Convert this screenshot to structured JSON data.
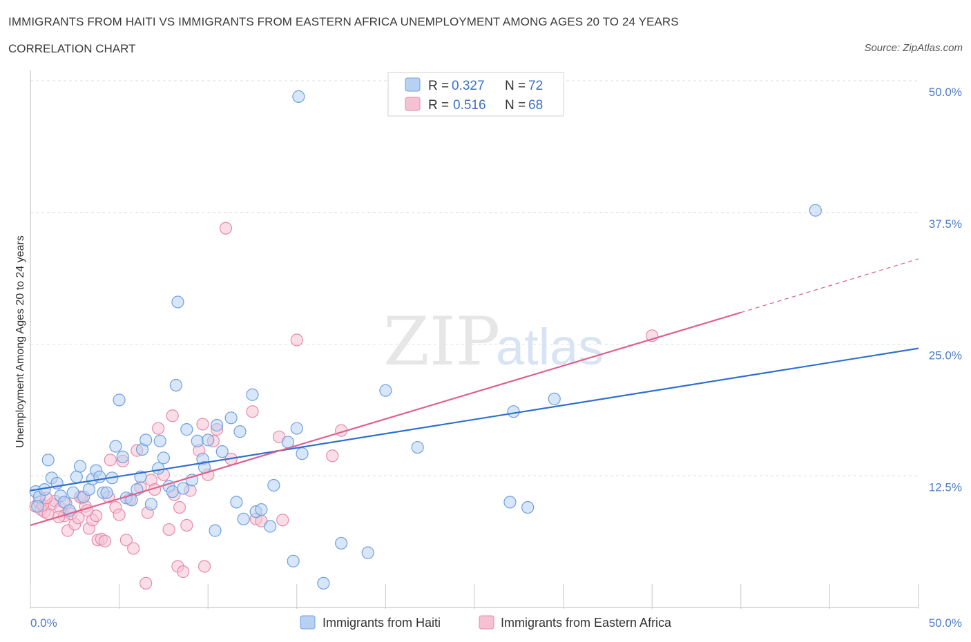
{
  "title": "IMMIGRANTS FROM HAITI VS IMMIGRANTS FROM EASTERN AFRICA UNEMPLOYMENT AMONG AGES 20 TO 24 YEARS",
  "subtitle": "CORRELATION CHART",
  "source": "Source: ZipAtlas.com",
  "watermark": {
    "zip": "ZIP",
    "atlas": "atlas"
  },
  "colors": {
    "haiti": "#6f9fe0",
    "haiti_fill": "#b7d1f3",
    "haiti_line": "#2e6fcf",
    "eafrica": "#e58aa8",
    "eafrica_fill": "#f6c2d3",
    "eafrica_line": "#e0608c",
    "grid": "#dcdcdc",
    "tick": "#4a7cc7"
  },
  "chart_data": {
    "type": "scatter",
    "xlabel": "",
    "ylabel": "Unemployment Among Ages 20 to 24 years",
    "xlim": [
      0,
      50
    ],
    "ylim": [
      0,
      50
    ],
    "x_tick_labels": [
      "0.0%",
      "50.0%"
    ],
    "y_ticks": [
      12.5,
      25.0,
      37.5,
      50.0
    ],
    "y_tick_labels": [
      "12.5%",
      "25.0%",
      "37.5%",
      "50.0%"
    ],
    "legend": {
      "rows": [
        {
          "r_label": "R = ",
          "r_value": "0.327",
          "n_label": "N = ",
          "n_value": "72"
        },
        {
          "r_label": "R = ",
          "r_value": "0.516",
          "n_label": "N = ",
          "n_value": "68"
        }
      ]
    },
    "series": [
      {
        "name": "Immigrants from Haiti",
        "trend": {
          "x0": 0,
          "y0": 11.1,
          "x1": 50,
          "y1": 24.6
        },
        "points": [
          [
            0.3,
            11.0
          ],
          [
            0.5,
            10.5
          ],
          [
            0.8,
            11.2
          ],
          [
            1.0,
            14.0
          ],
          [
            1.2,
            12.3
          ],
          [
            1.5,
            11.8
          ],
          [
            1.7,
            10.6
          ],
          [
            1.9,
            10.0
          ],
          [
            2.2,
            9.2
          ],
          [
            2.4,
            10.9
          ],
          [
            2.6,
            12.4
          ],
          [
            2.8,
            13.4
          ],
          [
            3.0,
            10.5
          ],
          [
            3.3,
            11.2
          ],
          [
            3.5,
            12.2
          ],
          [
            3.7,
            13.0
          ],
          [
            3.9,
            12.4
          ],
          [
            4.1,
            10.9
          ],
          [
            4.3,
            10.9
          ],
          [
            4.6,
            12.3
          ],
          [
            4.8,
            15.3
          ],
          [
            5.0,
            19.7
          ],
          [
            5.2,
            14.3
          ],
          [
            5.4,
            10.4
          ],
          [
            5.7,
            10.2
          ],
          [
            6.0,
            11.2
          ],
          [
            6.2,
            12.4
          ],
          [
            6.3,
            15.0
          ],
          [
            6.5,
            15.9
          ],
          [
            6.8,
            9.8
          ],
          [
            7.2,
            13.2
          ],
          [
            7.3,
            15.8
          ],
          [
            7.5,
            14.2
          ],
          [
            7.8,
            11.5
          ],
          [
            8.0,
            11.0
          ],
          [
            8.2,
            21.1
          ],
          [
            8.3,
            29.0
          ],
          [
            8.6,
            11.3
          ],
          [
            8.8,
            16.9
          ],
          [
            9.1,
            12.1
          ],
          [
            9.4,
            15.8
          ],
          [
            9.7,
            14.1
          ],
          [
            9.8,
            13.3
          ],
          [
            10.0,
            15.9
          ],
          [
            10.4,
            7.3
          ],
          [
            10.5,
            17.3
          ],
          [
            10.8,
            14.8
          ],
          [
            11.3,
            18.0
          ],
          [
            11.6,
            10.0
          ],
          [
            11.8,
            16.7
          ],
          [
            12.0,
            8.4
          ],
          [
            12.5,
            20.2
          ],
          [
            12.7,
            9.1
          ],
          [
            13.0,
            9.3
          ],
          [
            13.5,
            7.7
          ],
          [
            13.7,
            11.6
          ],
          [
            14.5,
            15.7
          ],
          [
            14.8,
            4.4
          ],
          [
            15.0,
            17.0
          ],
          [
            15.1,
            48.5
          ],
          [
            15.3,
            14.6
          ],
          [
            16.5,
            2.3
          ],
          [
            17.5,
            6.1
          ],
          [
            19.0,
            5.2
          ],
          [
            20.0,
            20.6
          ],
          [
            21.8,
            15.2
          ],
          [
            27.0,
            10.0
          ],
          [
            27.2,
            18.6
          ],
          [
            28.0,
            9.5
          ],
          [
            29.5,
            19.8
          ],
          [
            44.2,
            37.7
          ],
          [
            0.4,
            9.6
          ]
        ]
      },
      {
        "name": "Immigrants from Eastern Africa",
        "trend": {
          "x0": 0,
          "y0": 7.8,
          "x1": 40,
          "y1": 28.0,
          "dash_x1": 50,
          "dash_y1": 33.1
        },
        "points": [
          [
            0.3,
            9.6
          ],
          [
            0.5,
            10.0
          ],
          [
            0.6,
            9.3
          ],
          [
            0.8,
            9.1
          ],
          [
            1.0,
            8.9
          ],
          [
            1.2,
            9.8
          ],
          [
            1.4,
            10.1
          ],
          [
            1.7,
            9.4
          ],
          [
            1.9,
            8.7
          ],
          [
            2.1,
            7.3
          ],
          [
            2.3,
            8.9
          ],
          [
            2.5,
            7.9
          ],
          [
            2.7,
            8.5
          ],
          [
            2.9,
            10.4
          ],
          [
            3.1,
            9.6
          ],
          [
            3.3,
            7.5
          ],
          [
            3.5,
            8.3
          ],
          [
            3.7,
            8.7
          ],
          [
            3.8,
            6.4
          ],
          [
            4.0,
            6.5
          ],
          [
            4.2,
            6.3
          ],
          [
            4.4,
            10.5
          ],
          [
            4.5,
            14.0
          ],
          [
            4.8,
            9.5
          ],
          [
            5.0,
            8.8
          ],
          [
            5.2,
            13.9
          ],
          [
            5.4,
            6.4
          ],
          [
            5.6,
            10.3
          ],
          [
            5.8,
            5.6
          ],
          [
            6.0,
            14.9
          ],
          [
            6.2,
            11.4
          ],
          [
            6.5,
            2.3
          ],
          [
            6.6,
            9.0
          ],
          [
            6.8,
            12.1
          ],
          [
            7.0,
            11.2
          ],
          [
            7.2,
            17.0
          ],
          [
            7.5,
            12.6
          ],
          [
            7.8,
            7.4
          ],
          [
            8.0,
            18.2
          ],
          [
            8.1,
            10.7
          ],
          [
            8.3,
            3.9
          ],
          [
            8.4,
            9.5
          ],
          [
            8.6,
            3.4
          ],
          [
            8.8,
            7.8
          ],
          [
            9.0,
            11.1
          ],
          [
            9.5,
            14.9
          ],
          [
            9.7,
            17.4
          ],
          [
            9.8,
            3.9
          ],
          [
            10.0,
            12.6
          ],
          [
            10.3,
            15.8
          ],
          [
            10.5,
            16.9
          ],
          [
            11.0,
            36.0
          ],
          [
            11.3,
            14.1
          ],
          [
            12.5,
            18.6
          ],
          [
            12.7,
            8.4
          ],
          [
            13.0,
            8.2
          ],
          [
            14.0,
            16.2
          ],
          [
            14.2,
            8.3
          ],
          [
            15.0,
            25.4
          ],
          [
            17.0,
            14.4
          ],
          [
            17.5,
            16.8
          ],
          [
            0.7,
            9.7
          ],
          [
            0.9,
            10.4
          ],
          [
            1.6,
            8.6
          ],
          [
            2.0,
            9.9
          ],
          [
            2.8,
            10.5
          ],
          [
            3.2,
            9.2
          ],
          [
            35.0,
            25.8
          ]
        ]
      }
    ]
  }
}
